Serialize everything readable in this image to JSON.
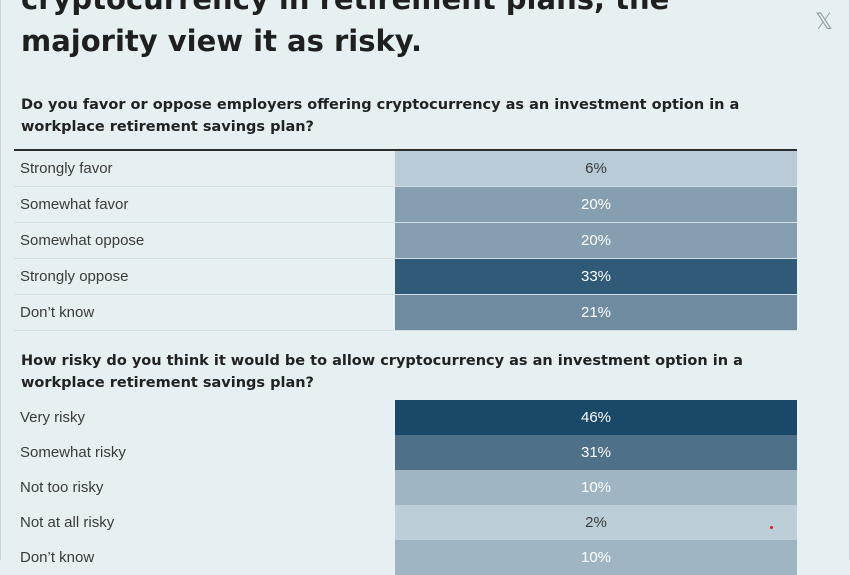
{
  "header": {
    "title": "cryptocurrency in retirement plans, the majority view it as risky.",
    "share_icon": "x-logo-icon"
  },
  "section1": {
    "question": "Do you favor or oppose employers offering cryptocurrency as an investment option in a workplace retirement savings plan?",
    "rows": [
      {
        "label": "Strongly favor",
        "value": "6%",
        "color": "#b8cbd6",
        "text_color": "#3a3a3a"
      },
      {
        "label": "Somewhat favor",
        "value": "20%",
        "color": "#869fb0",
        "text_color": "#ffffff"
      },
      {
        "label": "Somewhat oppose",
        "value": "20%",
        "color": "#869fb0",
        "text_color": "#ffffff"
      },
      {
        "label": "Strongly oppose",
        "value": "33%",
        "color": "#2f5a78",
        "text_color": "#ffffff"
      },
      {
        "label": "Don’t know",
        "value": "21%",
        "color": "#6e8ba0",
        "text_color": "#ffffff"
      }
    ]
  },
  "section2": {
    "question": "How risky do you think it would be to allow cryptocurrency as an investment option in a workplace retirement savings plan?",
    "rows": [
      {
        "label": "Very risky",
        "value": "46%",
        "color": "#1a4868",
        "text_color": "#ffffff"
      },
      {
        "label": "Somewhat risky",
        "value": "31%",
        "color": "#4f7089",
        "text_color": "#ffffff"
      },
      {
        "label": "Not too risky",
        "value": "10%",
        "color": "#9fb5c3",
        "text_color": "#ffffff"
      },
      {
        "label": "Not at all risky",
        "value": "2%",
        "color": "#bccfd9",
        "text_color": "#3a3a3a"
      },
      {
        "label": "Don’t know",
        "value": "10%",
        "color": "#9fb5c3",
        "text_color": "#ffffff"
      }
    ]
  }
}
